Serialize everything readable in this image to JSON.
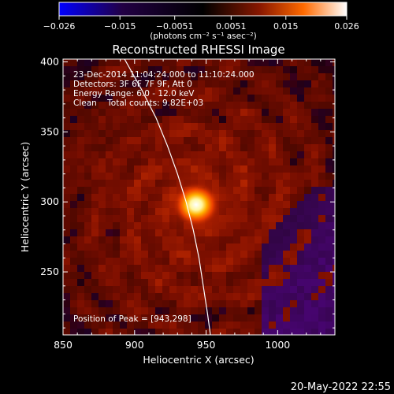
{
  "chart_data": {
    "type": "heatmap",
    "title": "Reconstructed RHESSI Image",
    "xlabel": "Heliocentric X (arcsec)",
    "ylabel": "Heliocentric Y (arcsec)",
    "xlim": [
      850,
      1040
    ],
    "ylim": [
      205,
      402
    ],
    "x_ticks": [
      850,
      900,
      950,
      1000
    ],
    "y_ticks": [
      250,
      300,
      350,
      400
    ],
    "colorbar": {
      "range": [
        -0.026,
        0.026
      ],
      "tick_labels": [
        "−0.026",
        "−0.015",
        "−0.0051",
        "0.0051",
        "0.015",
        "0.026"
      ],
      "tick_values": [
        -0.026,
        -0.015,
        -0.0051,
        0.0051,
        0.015,
        0.026
      ],
      "label": "(photons cm⁻² s⁻¹ asec⁻²)",
      "colors": [
        "#0000ff",
        "#1a0033",
        "#000000",
        "#8a1800",
        "#ff6a00",
        "#ffffff"
      ]
    },
    "annotations": [
      "23-Dec-2014 11:04:24.000 to 11:10:24.000",
      "Detectors: 3F 6F 7F 9F, Att 0",
      "Energy Range: 6.0 - 12.0 keV",
      "Clean    Total counts: 9.82E+03"
    ],
    "peak_label": "Position of Peak = [943,298]",
    "peak": {
      "x": 943,
      "y": 298
    },
    "limb_curve": [
      [
        893,
        402
      ],
      [
        905,
        380
      ],
      [
        915,
        360
      ],
      [
        923,
        340
      ],
      [
        930,
        320
      ],
      [
        936,
        300
      ],
      [
        941,
        280
      ],
      [
        945,
        260
      ],
      [
        948,
        240
      ],
      [
        951,
        220
      ],
      [
        953,
        205
      ]
    ],
    "timestamp": "20-May-2022 22:55"
  }
}
